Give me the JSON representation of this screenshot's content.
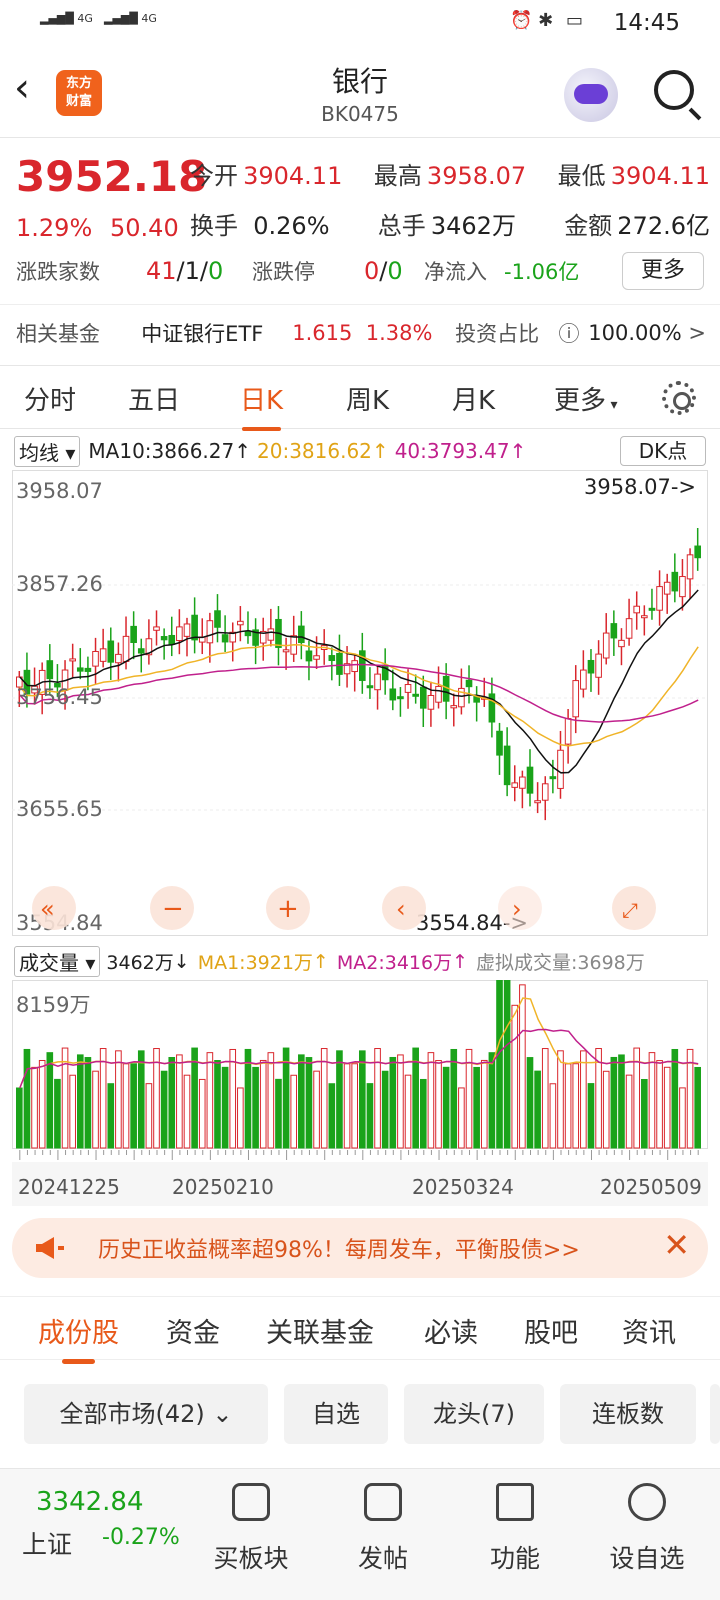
{
  "status": {
    "time": "14:45"
  },
  "header": {
    "title": "银行",
    "code": "BK0475",
    "logo_line1": "东方",
    "logo_line2": "财富"
  },
  "quote": {
    "price": "3952.18",
    "pct": "1.29%",
    "change": "50.40",
    "open_label": "今开",
    "open": "3904.11",
    "high_label": "最高",
    "high": "3958.07",
    "low_label": "最低",
    "low": "3904.11",
    "turnover_label": "换手",
    "turnover": "0.26%",
    "volume_label": "总手",
    "volume": "3462万",
    "amount_label": "金额",
    "amount": "272.6亿",
    "updown_label": "涨跌家数",
    "up": "41",
    "flat": "1",
    "down": "0",
    "limit_label": "涨跌停",
    "limit_up": "0",
    "limit_down": "0",
    "netflow_label": "净流入",
    "netflow": "-1.06亿",
    "more_label": "更多",
    "fund_label": "相关基金",
    "fund_name": "中证银行ETF",
    "fund_price": "1.615",
    "fund_pct": "1.38%",
    "ratio_label": "投资占比",
    "ratio": "100.00%"
  },
  "tabs": [
    "分时",
    "五日",
    "日K",
    "周K",
    "月K",
    "更多"
  ],
  "ma_row": {
    "select": "均线",
    "ma10": "MA10:3866.27",
    "ma20": "20:3816.62",
    "ma40": "40:3793.47",
    "dk": "DK点"
  },
  "chart_data": {
    "type": "candlestick",
    "y_ticks": [
      "3958.07",
      "3857.26",
      "3756.45",
      "3655.65",
      "3554.84"
    ],
    "max_label": "3958.07->",
    "min_label": "3554.84->",
    "volume": {
      "select": "成交量",
      "current": "3462万",
      "ma1": "MA1:3921万",
      "ma2": "MA2:3416万",
      "virtual": "虚拟成交量:3698万",
      "max_label": "8159万"
    },
    "x_ticks": [
      "20241225",
      "20250210",
      "20250324",
      "20250509"
    ],
    "colors": {
      "up": "#d9262c",
      "down": "#1aa31a",
      "ma10": "#111111",
      "ma20": "#f0b428",
      "ma40": "#c0208c"
    }
  },
  "banner": {
    "text": "历史正收益概率超98%！每周发车，平衡股债>>"
  },
  "subtabs": [
    "成份股",
    "资金",
    "关联基金",
    "必读",
    "股吧",
    "资讯"
  ],
  "filters": [
    "全部市场(42)",
    "自选",
    "龙头(7)",
    "连板数"
  ],
  "bottom": {
    "index_price": "3342.84",
    "index_name": "上证",
    "index_pct": "-0.27%",
    "items": [
      "买板块",
      "发帖",
      "功能",
      "设自选"
    ]
  }
}
